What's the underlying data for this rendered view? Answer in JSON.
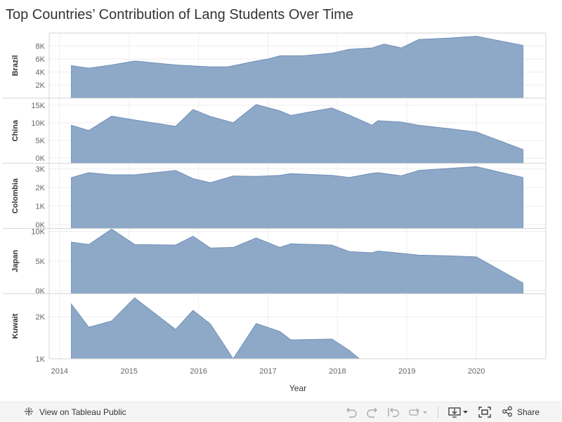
{
  "title": "Top Countries’ Contribution of Lang Students Over Time",
  "colors": {
    "area": "#8ea9c8",
    "stroke": "#6f8fb6",
    "grid": "#eeeeee",
    "border": "#d4d4d4"
  },
  "chart_data": {
    "type": "area",
    "title": "Top Countries’ Contribution of Lang Students Over Time",
    "xlabel": "Year",
    "xlim": [
      2013.85,
      2021.0
    ],
    "x_ticks": [
      "2014",
      "2015",
      "2016",
      "2017",
      "2018",
      "2019",
      "2020"
    ],
    "grid": true,
    "series": [
      {
        "name": "Brazil",
        "ylim": [
          0,
          10000
        ],
        "y_ticks": [
          "2K",
          "4K",
          "6K",
          "8K"
        ],
        "x": [
          2014.17,
          2014.42,
          2014.75,
          2015.08,
          2015.67,
          2016.17,
          2016.42,
          2016.83,
          2017.0,
          2017.17,
          2017.5,
          2017.92,
          2018.17,
          2018.5,
          2018.67,
          2018.92,
          2019.17,
          2019.58,
          2020.0,
          2020.67
        ],
        "values": [
          5000,
          4600,
          5100,
          5700,
          5100,
          4800,
          4800,
          5700,
          6000,
          6500,
          6500,
          6900,
          7500,
          7700,
          8300,
          7700,
          9000,
          9200,
          9500,
          8100
        ]
      },
      {
        "name": "China",
        "ylim": [
          -1500,
          17000
        ],
        "y_ticks": [
          "0K",
          "5K",
          "10K",
          "15K"
        ],
        "x": [
          2014.17,
          2014.42,
          2014.75,
          2015.08,
          2015.67,
          2015.92,
          2016.17,
          2016.5,
          2016.83,
          2017.17,
          2017.33,
          2017.92,
          2018.17,
          2018.5,
          2018.58,
          2018.92,
          2019.17,
          2019.58,
          2020.0,
          2020.67
        ],
        "values": [
          9300,
          7800,
          11900,
          10800,
          9000,
          13800,
          11800,
          10000,
          15200,
          13400,
          12100,
          14200,
          12200,
          9300,
          10600,
          10200,
          9300,
          8400,
          7400,
          2400
        ]
      },
      {
        "name": "Colombia",
        "ylim": [
          -200,
          3300
        ],
        "y_ticks": [
          "0K",
          "1K",
          "2K",
          "3K"
        ],
        "x": [
          2014.17,
          2014.42,
          2014.75,
          2015.08,
          2015.67,
          2015.92,
          2016.17,
          2016.5,
          2016.83,
          2017.17,
          2017.33,
          2017.92,
          2018.17,
          2018.5,
          2018.58,
          2018.92,
          2019.17,
          2019.58,
          2020.0,
          2020.67
        ],
        "values": [
          2530,
          2800,
          2680,
          2680,
          2920,
          2480,
          2260,
          2620,
          2600,
          2650,
          2750,
          2650,
          2540,
          2770,
          2800,
          2630,
          2920,
          3020,
          3120,
          2540
        ]
      },
      {
        "name": "Japan",
        "ylim": [
          -500,
          10500
        ],
        "y_ticks": [
          "0K",
          "5K",
          "10K"
        ],
        "x": [
          2014.17,
          2014.42,
          2014.75,
          2015.08,
          2015.67,
          2015.92,
          2016.17,
          2016.5,
          2016.83,
          2017.17,
          2017.33,
          2017.92,
          2018.17,
          2018.5,
          2018.58,
          2018.92,
          2019.17,
          2019.58,
          2020.0,
          2020.67
        ],
        "values": [
          8200,
          7800,
          10400,
          7800,
          7700,
          9200,
          7200,
          7300,
          8900,
          7300,
          7900,
          7700,
          6600,
          6400,
          6700,
          6300,
          6000,
          5900,
          5700,
          1300
        ]
      },
      {
        "name": "Kuwait",
        "ylim": [
          1000,
          2550
        ],
        "y_ticks": [
          "1K",
          "2K"
        ],
        "x": [
          2014.17,
          2014.42,
          2014.75,
          2015.08,
          2015.67,
          2015.92,
          2016.17,
          2016.5,
          2016.83,
          2017.17,
          2017.33,
          2017.92,
          2018.17,
          2018.33
        ],
        "values": [
          2300,
          1750,
          1900,
          2450,
          1700,
          2150,
          1830,
          1000,
          1840,
          1650,
          1450,
          1470,
          1200,
          980
        ]
      }
    ]
  },
  "toolbar": {
    "view_label": "View on Tableau Public",
    "share_label": "Share"
  }
}
